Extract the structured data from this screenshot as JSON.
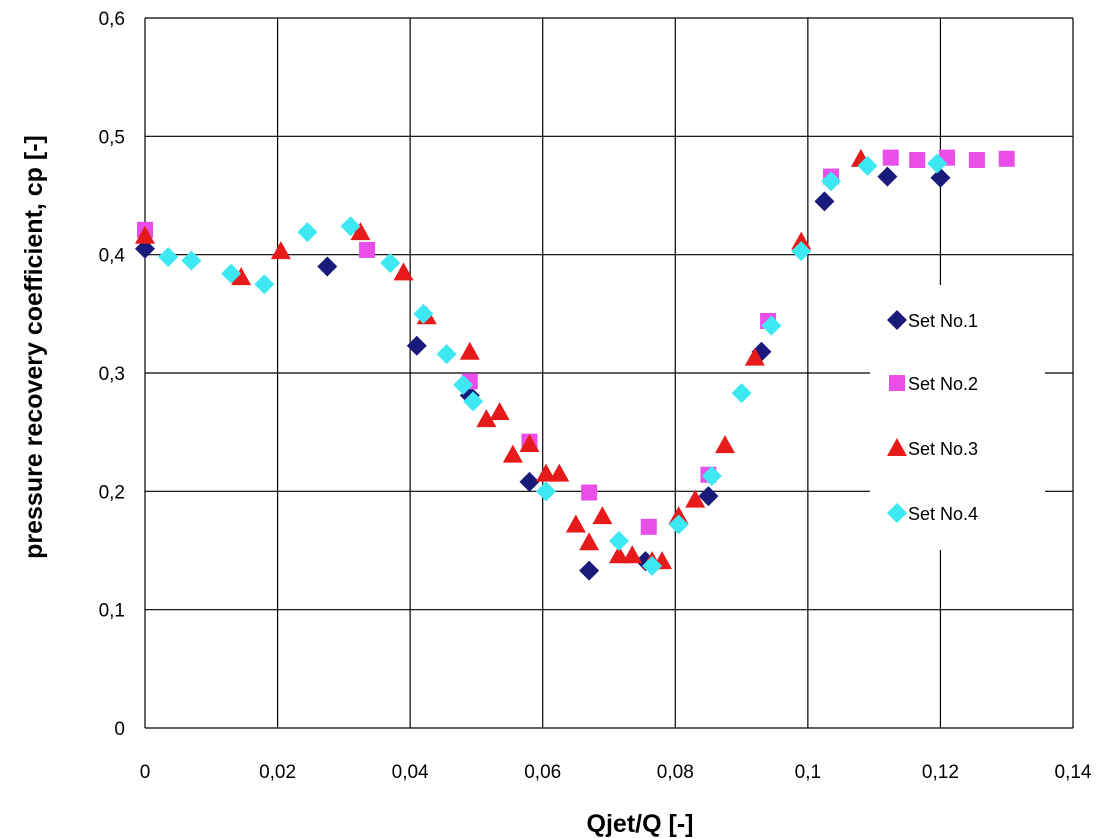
{
  "chart_data": {
    "type": "scatter",
    "xlabel": "Qjet/Q [-]",
    "ylabel": "pressure recovery coefficient, cp [-]",
    "xlim": [
      0,
      0.14
    ],
    "ylim": [
      0,
      0.6
    ],
    "x_ticks": [
      "0",
      "0,02",
      "0,04",
      "0,06",
      "0,08",
      "0,1",
      "0,12",
      "0,14"
    ],
    "y_ticks": [
      "0",
      "0,1",
      "0,2",
      "0,3",
      "0,4",
      "0,5",
      "0,6"
    ],
    "grid": true,
    "legend_position": "right",
    "series": [
      {
        "name": "Set No.1",
        "marker": "diamond",
        "color": "#1a1a7a",
        "points": [
          [
            0.0,
            0.405
          ],
          [
            0.0275,
            0.39
          ],
          [
            0.041,
            0.323
          ],
          [
            0.049,
            0.281
          ],
          [
            0.058,
            0.208
          ],
          [
            0.067,
            0.133
          ],
          [
            0.0755,
            0.141
          ],
          [
            0.085,
            0.196
          ],
          [
            0.093,
            0.318
          ],
          [
            0.1025,
            0.445
          ],
          [
            0.112,
            0.466
          ],
          [
            0.12,
            0.465
          ]
        ]
      },
      {
        "name": "Set No.2",
        "marker": "square",
        "color": "#e94ee9",
        "points": [
          [
            0.0,
            0.421
          ],
          [
            0.0335,
            0.404
          ],
          [
            0.049,
            0.293
          ],
          [
            0.058,
            0.242
          ],
          [
            0.067,
            0.199
          ],
          [
            0.076,
            0.17
          ],
          [
            0.085,
            0.214
          ],
          [
            0.094,
            0.344
          ],
          [
            0.1035,
            0.466
          ],
          [
            0.1125,
            0.482
          ],
          [
            0.1165,
            0.48
          ],
          [
            0.121,
            0.482
          ],
          [
            0.1255,
            0.48
          ],
          [
            0.13,
            0.481
          ]
        ]
      },
      {
        "name": "Set No.3",
        "marker": "triangle",
        "color": "#e61a1a",
        "points": [
          [
            0.0,
            0.416
          ],
          [
            0.0145,
            0.381
          ],
          [
            0.0205,
            0.403
          ],
          [
            0.0325,
            0.419
          ],
          [
            0.039,
            0.385
          ],
          [
            0.0425,
            0.348
          ],
          [
            0.049,
            0.318
          ],
          [
            0.0515,
            0.261
          ],
          [
            0.0535,
            0.267
          ],
          [
            0.0555,
            0.231
          ],
          [
            0.058,
            0.24
          ],
          [
            0.0605,
            0.215
          ],
          [
            0.0625,
            0.215
          ],
          [
            0.065,
            0.172
          ],
          [
            0.067,
            0.157
          ],
          [
            0.069,
            0.179
          ],
          [
            0.0715,
            0.146
          ],
          [
            0.0735,
            0.146
          ],
          [
            0.0765,
            0.141
          ],
          [
            0.078,
            0.141
          ],
          [
            0.0805,
            0.179
          ],
          [
            0.083,
            0.193
          ],
          [
            0.0875,
            0.239
          ],
          [
            0.092,
            0.313
          ],
          [
            0.099,
            0.411
          ],
          [
            0.108,
            0.481
          ]
        ]
      },
      {
        "name": "Set No.4",
        "marker": "diamond",
        "color": "#3ee8f2",
        "points": [
          [
            0.0035,
            0.398
          ],
          [
            0.007,
            0.395
          ],
          [
            0.013,
            0.384
          ],
          [
            0.018,
            0.375
          ],
          [
            0.0245,
            0.419
          ],
          [
            0.031,
            0.424
          ],
          [
            0.037,
            0.393
          ],
          [
            0.042,
            0.35
          ],
          [
            0.0455,
            0.316
          ],
          [
            0.048,
            0.29
          ],
          [
            0.0495,
            0.276
          ],
          [
            0.0605,
            0.2
          ],
          [
            0.0715,
            0.158
          ],
          [
            0.0765,
            0.137
          ],
          [
            0.0805,
            0.172
          ],
          [
            0.0855,
            0.213
          ],
          [
            0.09,
            0.283
          ],
          [
            0.0945,
            0.34
          ],
          [
            0.099,
            0.403
          ],
          [
            0.1035,
            0.462
          ],
          [
            0.109,
            0.475
          ],
          [
            0.1195,
            0.477
          ]
        ]
      }
    ]
  }
}
